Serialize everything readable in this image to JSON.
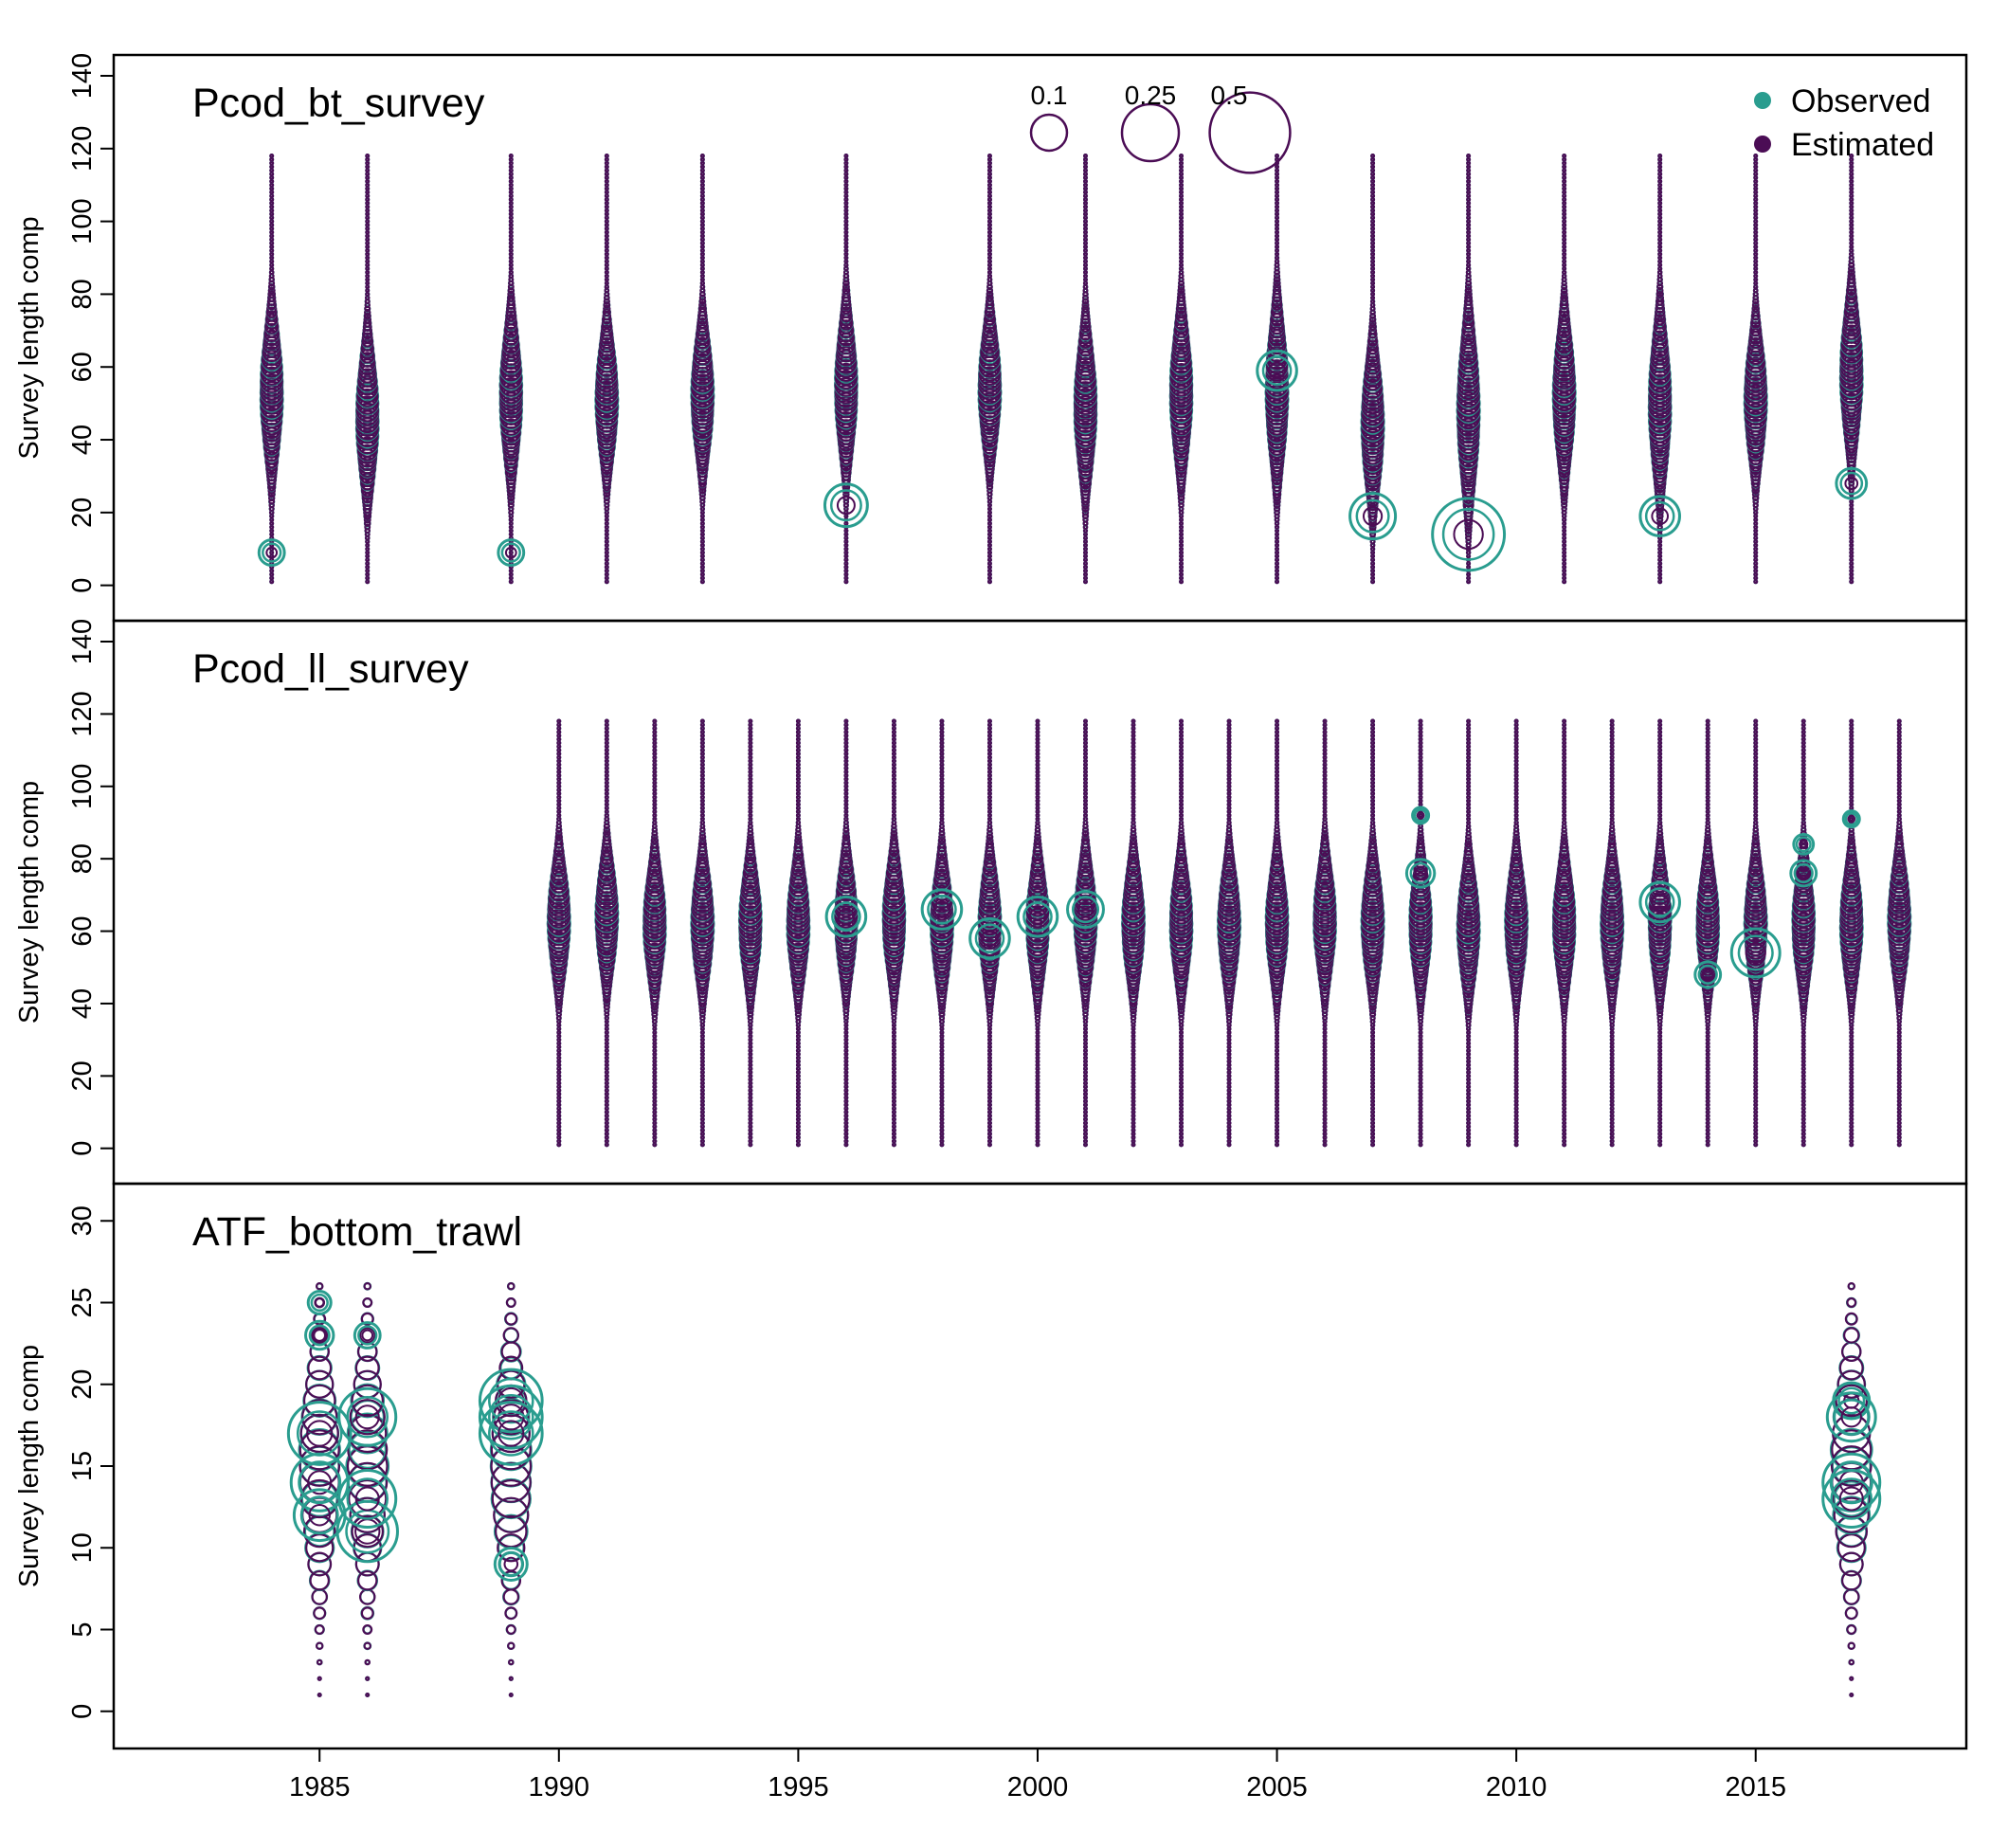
{
  "chart_data": {
    "type": "bubble",
    "xlim": [
      1980.7,
      2019.4
    ],
    "x_ticks": [
      1985,
      1990,
      1995,
      2000,
      2005,
      2010,
      2015
    ],
    "colors": {
      "observed": "#2a9d8f",
      "estimated": "#4b0d55"
    },
    "legend": {
      "position": "top-right",
      "entries": [
        "Observed",
        "Estimated"
      ]
    },
    "size_legend": {
      "values": [
        "0.1",
        "0.25",
        "0.5"
      ],
      "proportions": [
        0.1,
        0.25,
        0.5
      ]
    },
    "panels": [
      {
        "title": "Pcod_bt_survey",
        "ylabel": "Survey length comp",
        "ylim": [
          -4,
          140
        ],
        "y_ticks": [
          0,
          20,
          40,
          60,
          80,
          100,
          120,
          140
        ],
        "length_bins": [
          1,
          118
        ],
        "years": [
          1984,
          1986,
          1989,
          1991,
          1993,
          1996,
          1999,
          2001,
          2003,
          2005,
          2007,
          2009,
          2011,
          2013,
          2015,
          2017
        ],
        "estimated_mode": [
          53,
          46,
          52,
          51,
          52,
          54,
          54,
          49,
          53,
          53,
          44,
          48,
          52,
          50,
          51,
          58
        ],
        "estimated_halfwidth": [
          12,
          12,
          12,
          11,
          11,
          12,
          11,
          12,
          12,
          13,
          12,
          14,
          12,
          13,
          11,
          12
        ],
        "observed_highlights": [
          {
            "year": 1984,
            "length": 9,
            "prop": 0.05
          },
          {
            "year": 1989,
            "length": 9,
            "prop": 0.05
          },
          {
            "year": 1996,
            "length": 22,
            "prop": 0.14
          },
          {
            "year": 2005,
            "length": 59,
            "prop": 0.12
          },
          {
            "year": 2007,
            "length": 19,
            "prop": 0.16
          },
          {
            "year": 2009,
            "length": 14,
            "prop": 0.4
          },
          {
            "year": 2013,
            "length": 19,
            "prop": 0.12
          },
          {
            "year": 2017,
            "length": 28,
            "prop": 0.07
          }
        ]
      },
      {
        "title": "Pcod_ll_survey",
        "ylabel": "Survey length comp",
        "ylim": [
          -4,
          140
        ],
        "y_ticks": [
          0,
          20,
          40,
          60,
          80,
          100,
          120,
          140
        ],
        "length_bins": [
          1,
          118
        ],
        "years": [
          1990,
          1991,
          1992,
          1993,
          1994,
          1995,
          1996,
          1997,
          1998,
          1999,
          2000,
          2001,
          2002,
          2003,
          2004,
          2005,
          2006,
          2007,
          2008,
          2009,
          2010,
          2011,
          2012,
          2013,
          2014,
          2015,
          2016,
          2017,
          2018
        ],
        "estimated_mode": [
          63,
          64,
          62,
          62,
          62,
          62,
          63,
          63,
          62,
          62,
          62,
          63,
          62,
          62,
          62,
          62,
          63,
          62,
          62,
          61,
          62,
          62,
          62,
          62,
          62,
          62,
          62,
          62,
          63
        ],
        "estimated_halfwidth": [
          10,
          10,
          10,
          10,
          10,
          10,
          10,
          10,
          10,
          10,
          10,
          10,
          10,
          10,
          10,
          10,
          10,
          10,
          10,
          10,
          10,
          10,
          10,
          10,
          10,
          10,
          10,
          10,
          10
        ],
        "observed_highlights": [
          {
            "year": 1996,
            "length": 64,
            "prop": 0.12
          },
          {
            "year": 1998,
            "length": 66,
            "prop": 0.12
          },
          {
            "year": 1999,
            "length": 58,
            "prop": 0.12
          },
          {
            "year": 2000,
            "length": 64,
            "prop": 0.12
          },
          {
            "year": 2001,
            "length": 66,
            "prop": 0.1
          },
          {
            "year": 2008,
            "length": 76,
            "prop": 0.06
          },
          {
            "year": 2008,
            "length": 92,
            "prop": 0.02
          },
          {
            "year": 2013,
            "length": 68,
            "prop": 0.12
          },
          {
            "year": 2014,
            "length": 48,
            "prop": 0.05
          },
          {
            "year": 2015,
            "length": 54,
            "prop": 0.18
          },
          {
            "year": 2016,
            "length": 76,
            "prop": 0.05
          },
          {
            "year": 2016,
            "length": 84,
            "prop": 0.03
          },
          {
            "year": 2017,
            "length": 91,
            "prop": 0.02
          }
        ]
      },
      {
        "title": "ATF_bottom_trawl",
        "ylabel": "Survey length comp",
        "ylim": [
          -1,
          31
        ],
        "y_ticks": [
          0,
          5,
          10,
          15,
          20,
          25,
          30
        ],
        "length_bins": [
          1,
          26
        ],
        "years": [
          1985,
          1986,
          1989,
          2017
        ],
        "estimated_mode": [
          15,
          15,
          15,
          15
        ],
        "estimated_halfwidth": [
          4,
          4,
          4,
          4
        ],
        "observed_highlights": [
          {
            "year": 1985,
            "length": 17,
            "prop": 0.3
          },
          {
            "year": 1985,
            "length": 14,
            "prop": 0.25
          },
          {
            "year": 1985,
            "length": 12,
            "prop": 0.2
          },
          {
            "year": 1985,
            "length": 23,
            "prop": 0.06
          },
          {
            "year": 1985,
            "length": 25,
            "prop": 0.04
          },
          {
            "year": 1986,
            "length": 18,
            "prop": 0.25
          },
          {
            "year": 1986,
            "length": 11,
            "prop": 0.28
          },
          {
            "year": 1986,
            "length": 13,
            "prop": 0.25
          },
          {
            "year": 1986,
            "length": 23,
            "prop": 0.05
          },
          {
            "year": 1989,
            "length": 19,
            "prop": 0.3
          },
          {
            "year": 1989,
            "length": 18,
            "prop": 0.3
          },
          {
            "year": 1989,
            "length": 17,
            "prop": 0.3
          },
          {
            "year": 1989,
            "length": 9,
            "prop": 0.08
          },
          {
            "year": 2017,
            "length": 19,
            "prop": 0.1
          },
          {
            "year": 2017,
            "length": 18,
            "prop": 0.18
          },
          {
            "year": 2017,
            "length": 14,
            "prop": 0.25
          },
          {
            "year": 2017,
            "length": 13,
            "prop": 0.25
          }
        ]
      }
    ]
  }
}
